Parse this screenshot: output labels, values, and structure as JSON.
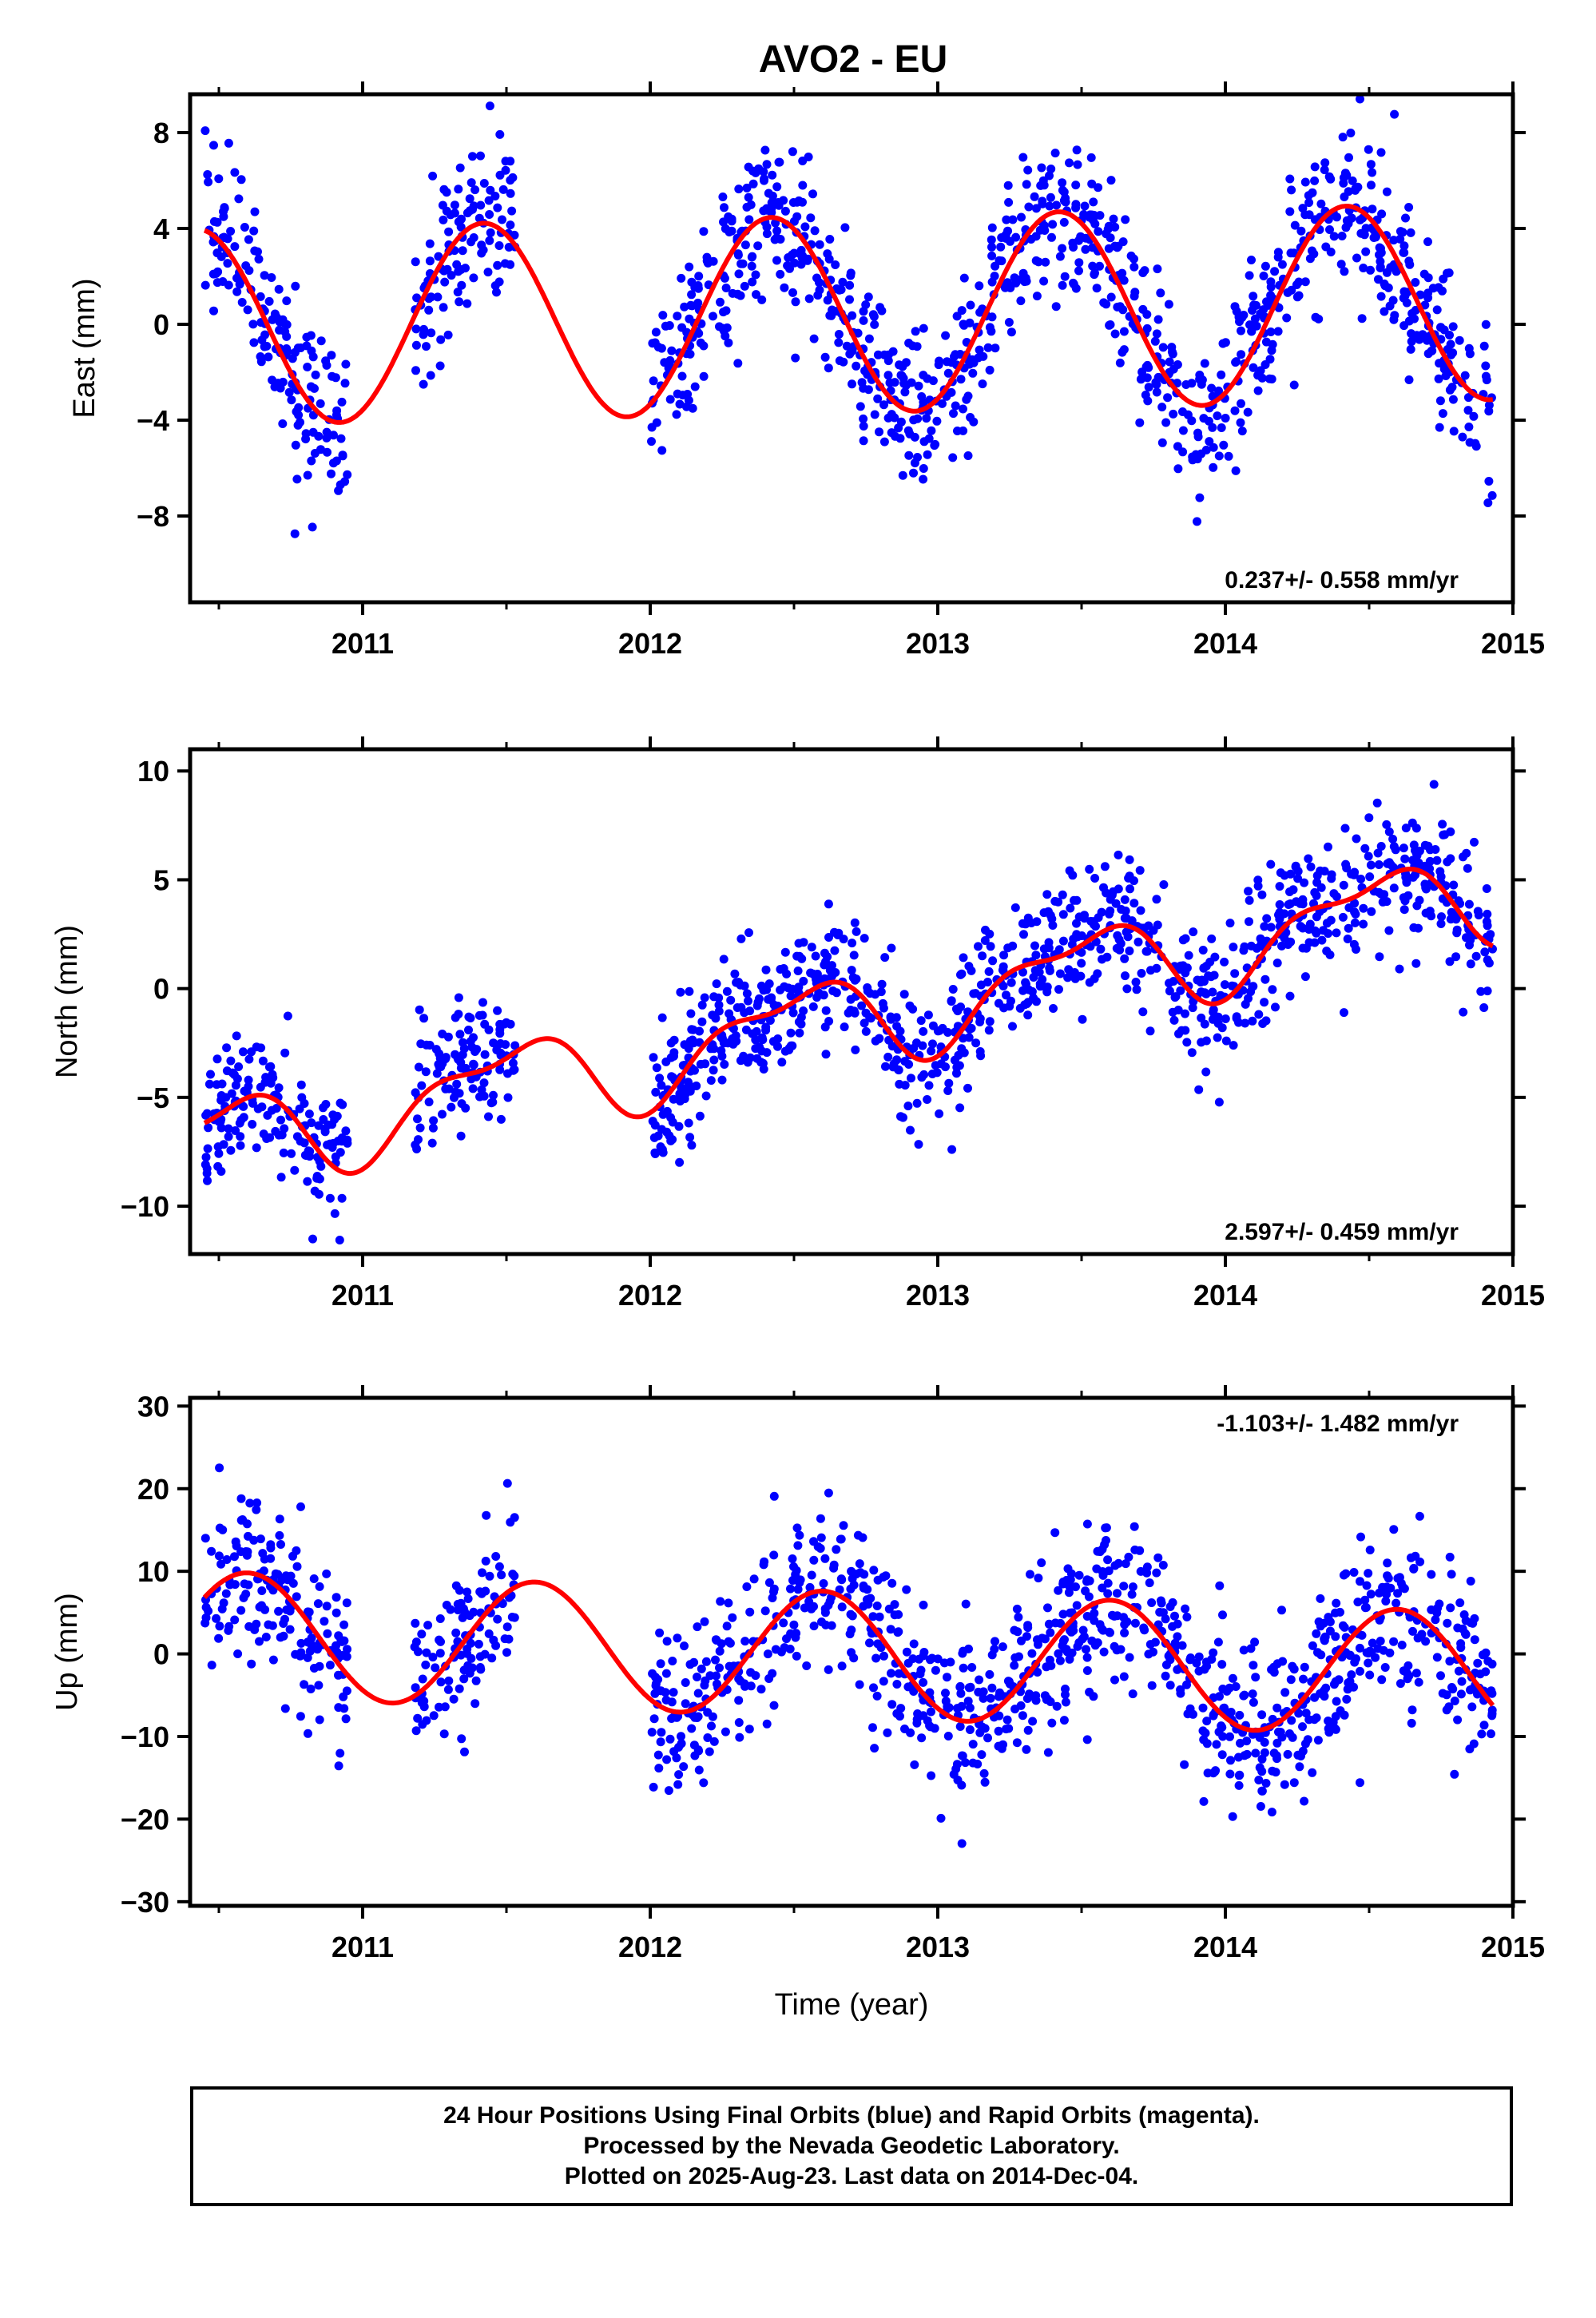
{
  "figure": {
    "title": "AVO2 - EU"
  },
  "caption": {
    "line1": "24 Hour Positions Using Final Orbits (blue) and Rapid Orbits (magenta).",
    "line2": "Processed by the Nevada Geodetic Laboratory.",
    "line3": "Plotted on 2025-Aug-23. Last data on 2014-Dec-04."
  },
  "colors": {
    "final_orbits": "#0000ff",
    "model_fit": "#ff0000",
    "rapid_orbits": "#ff00ff"
  },
  "chart_data": [
    {
      "type": "scatter",
      "component": "east",
      "ylabel": "East (mm)",
      "xlabel": "",
      "xlim": [
        2010.4,
        2015.0
      ],
      "ylim": [
        -11.6,
        9.6
      ],
      "xticks": [
        2011,
        2012,
        2013,
        2014,
        2015
      ],
      "yticks": [
        -8,
        -4,
        0,
        4,
        8
      ],
      "rate": "0.237+/- 0.558 mm/yr",
      "rate_position": "bottom-right",
      "data_span": [
        [
          2010.45,
          2010.95
        ],
        [
          2011.18,
          2011.53
        ],
        [
          2012.0,
          2014.93
        ]
      ],
      "model": {
        "start": 2010.45,
        "end": 2014.93,
        "ref_epoch": 2012.6,
        "intercept": 0.4,
        "velocity": 0.237,
        "annual_cos": 0.0,
        "annual_sin": 0.0,
        "annual_amp": 4.1,
        "annual_peak": 0.42,
        "semi_amp": 0.0,
        "semi_peak": 0.0
      },
      "scatter": {
        "points_per_year": 330,
        "residual_sd": 1.7,
        "seed": 11
      }
    },
    {
      "type": "scatter",
      "component": "north",
      "ylabel": "North (mm)",
      "xlabel": "",
      "xlim": [
        2010.4,
        2015.0
      ],
      "ylim": [
        -12.2,
        11.0
      ],
      "xticks": [
        2011,
        2012,
        2013,
        2014,
        2015
      ],
      "yticks": [
        -10,
        -5,
        0,
        5,
        10
      ],
      "rate": "2.597+/- 0.459 mm/yr",
      "rate_position": "bottom-right",
      "data_span": [
        [
          2010.45,
          2010.95
        ],
        [
          2011.18,
          2011.53
        ],
        [
          2012.0,
          2014.93
        ]
      ],
      "model": {
        "start": 2010.45,
        "end": 2014.93,
        "ref_epoch": 2012.6,
        "intercept": -1.6,
        "velocity": 2.597,
        "annual_amp": 1.9,
        "annual_peak": 0.5,
        "semi_amp": 0.8,
        "semi_peak": 0.2
      },
      "scatter": {
        "points_per_year": 330,
        "residual_sd": 1.5,
        "seed": 23
      }
    },
    {
      "type": "scatter",
      "component": "up",
      "ylabel": "Up (mm)",
      "xlabel": "Time (year)",
      "xlim": [
        2010.4,
        2015.0
      ],
      "ylim": [
        -30.5,
        31.0
      ],
      "xticks": [
        2011,
        2012,
        2013,
        2014,
        2015
      ],
      "yticks": [
        -30,
        -20,
        -10,
        0,
        10,
        20,
        30
      ],
      "rate": "-1.103+/- 1.482 mm/yr",
      "rate_position": "top-right",
      "data_span": [
        [
          2010.45,
          2010.95
        ],
        [
          2011.18,
          2011.53
        ],
        [
          2012.0,
          2014.93
        ]
      ],
      "model": {
        "start": 2010.45,
        "end": 2014.93,
        "ref_epoch": 2012.6,
        "intercept": 0.0,
        "velocity": -1.103,
        "annual_amp": 7.6,
        "annual_peak": 0.6,
        "semi_amp": 0.0,
        "semi_peak": 0.0
      },
      "scatter": {
        "points_per_year": 330,
        "residual_sd": 5.0,
        "seed": 37
      }
    }
  ]
}
